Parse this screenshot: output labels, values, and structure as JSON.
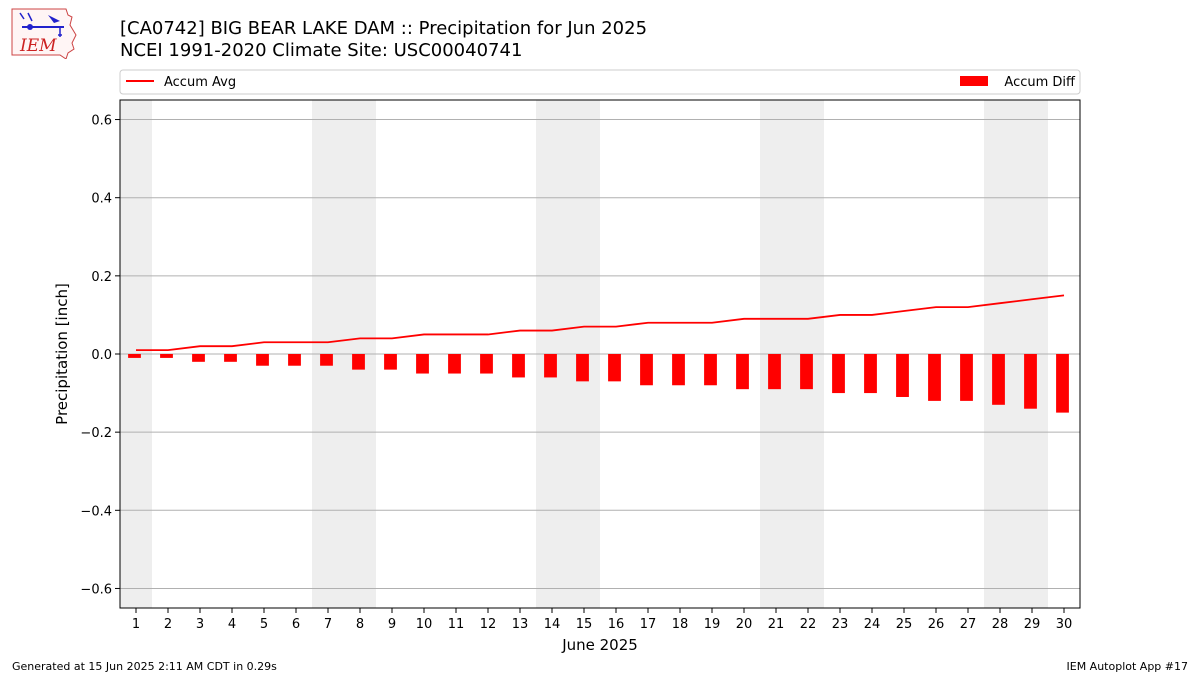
{
  "header": {
    "title_line1": "[CA0742] BIG BEAR LAKE DAM :: Precipitation for Jun 2025",
    "title_line2": "NCEI 1991-2020 Climate Site: USC00040741"
  },
  "logo": {
    "text": "IEM"
  },
  "footer": {
    "generated": "Generated at 15 Jun 2025 2:11 AM CDT in 0.29s",
    "app": "IEM Autoplot App #17"
  },
  "colors": {
    "series": "#ff0000",
    "weekend_band": "#eeeeee",
    "grid": "#b0b0b0"
  },
  "chart_data": {
    "type": "bar",
    "xlabel": "June 2025",
    "ylabel": "Precipitation [inch]",
    "ylim": [
      -0.65,
      0.65
    ],
    "xlim": [
      0.5,
      30.5
    ],
    "yticks": [
      -0.6,
      -0.4,
      -0.2,
      0.0,
      0.2,
      0.4,
      0.6
    ],
    "ytick_labels": [
      "−0.6",
      "−0.4",
      "−0.2",
      "0.0",
      "0.2",
      "0.4",
      "0.6"
    ],
    "x": [
      1,
      2,
      3,
      4,
      5,
      6,
      7,
      8,
      9,
      10,
      11,
      12,
      13,
      14,
      15,
      16,
      17,
      18,
      19,
      20,
      21,
      22,
      23,
      24,
      25,
      26,
      27,
      28,
      29,
      30
    ],
    "grid": "horizontal",
    "legend_placement": "top, above plot",
    "weekend_days": [
      1,
      7,
      8,
      14,
      15,
      21,
      22,
      28,
      29
    ],
    "series": [
      {
        "name": "Accum Avg",
        "kind": "line",
        "values": [
          0.01,
          0.01,
          0.02,
          0.02,
          0.03,
          0.03,
          0.03,
          0.04,
          0.04,
          0.05,
          0.05,
          0.05,
          0.06,
          0.06,
          0.07,
          0.07,
          0.08,
          0.08,
          0.08,
          0.09,
          0.09,
          0.09,
          0.1,
          0.1,
          0.11,
          0.12,
          0.12,
          0.13,
          0.14,
          0.15
        ]
      },
      {
        "name": "Accum Diff",
        "kind": "bar",
        "values": [
          -0.01,
          -0.01,
          -0.02,
          -0.02,
          -0.03,
          -0.03,
          -0.03,
          -0.04,
          -0.04,
          -0.05,
          -0.05,
          -0.05,
          -0.06,
          -0.06,
          -0.07,
          -0.07,
          -0.08,
          -0.08,
          -0.08,
          -0.09,
          -0.09,
          -0.09,
          -0.1,
          -0.1,
          -0.11,
          -0.12,
          -0.12,
          -0.13,
          -0.14,
          -0.15
        ]
      }
    ]
  }
}
